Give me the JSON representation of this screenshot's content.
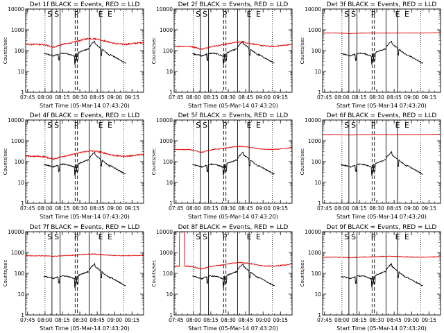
{
  "figure": {
    "ylabel": "Counts/sec",
    "xlabel_prefix": "Start Time (",
    "start_time": "05-Mar-14 07:43:20",
    "xlabel_suffix": ")"
  },
  "colors": {
    "events": "#000000",
    "lld": "#e00000",
    "axes": "#000000"
  },
  "axes": {
    "x_ticks": [
      "07:45",
      "08:00",
      "08:15",
      "08:30",
      "08:45",
      "09:00",
      "09:15"
    ],
    "x_tick_minutes": [
      105,
      120,
      135,
      150,
      165,
      180,
      195
    ],
    "x_range_minutes": [
      103.33,
      205
    ],
    "y_ticks": [
      "1",
      "10",
      "100",
      "1000",
      "10000"
    ],
    "y_tick_values": [
      1,
      10,
      100,
      1000,
      10000
    ],
    "y_range": [
      1,
      10000
    ],
    "y_scale": "log",
    "y_minor_ticks": "log decade minors"
  },
  "markers": {
    "letters": [
      "S",
      "P",
      "E"
    ],
    "dotted_minutes": [
      120,
      188
    ],
    "solid_minutes": [
      126,
      133,
      158,
      168
    ],
    "dashed_minutes": [
      146,
      148
    ],
    "letter_positions": [
      [
        124,
        130
      ],
      [
        147
      ],
      [
        168,
        176
      ]
    ]
  },
  "chart_data": [
    {
      "type": "line",
      "title": "Det 1f BLACK = Events, RED = LLD",
      "lld_level": 200,
      "lld_noise": 0.08,
      "lld_hump": 1.9,
      "events_level": 60
    },
    {
      "type": "line",
      "title": "Det 2f BLACK = Events, RED = LLD",
      "lld_level": 160,
      "lld_noise": 0.06,
      "lld_hump": 1.6,
      "events_level": 60
    },
    {
      "type": "line",
      "title": "Det 3f BLACK = Events, RED = LLD",
      "lld_level": 700,
      "lld_noise": 0.02,
      "lld_hump": 1.0,
      "events_level": 60
    },
    {
      "type": "line",
      "title": "Det 4f BLACK = Events, RED = LLD",
      "lld_level": 180,
      "lld_noise": 0.08,
      "lld_hump": 1.8,
      "events_level": 60
    },
    {
      "type": "line",
      "title": "Det 5f BLACK = Events, RED = LLD",
      "lld_level": 380,
      "lld_noise": 0.04,
      "lld_hump": 1.4,
      "events_level": 60
    },
    {
      "type": "line",
      "title": "Det 6f BLACK = Events, RED = LLD",
      "lld_level": 2000,
      "lld_noise": 0.01,
      "lld_hump": 1.0,
      "events_level": 60
    },
    {
      "type": "line",
      "title": "Det 7f BLACK = Events, RED = LLD",
      "lld_level": 700,
      "lld_noise": 0.04,
      "lld_hump": 1.2,
      "events_level": 60
    },
    {
      "type": "line",
      "title": "Det 8f BLACK = Events, RED = LLD",
      "lld_level": 220,
      "lld_noise": 0.05,
      "lld_hump": 1.5,
      "events_level": 60,
      "lld_spike": true
    },
    {
      "type": "line",
      "title": "Det 9f BLACK = Events, RED = LLD",
      "lld_level": 600,
      "lld_noise": 0.04,
      "lld_hump": 1.1,
      "events_level": 60
    }
  ]
}
